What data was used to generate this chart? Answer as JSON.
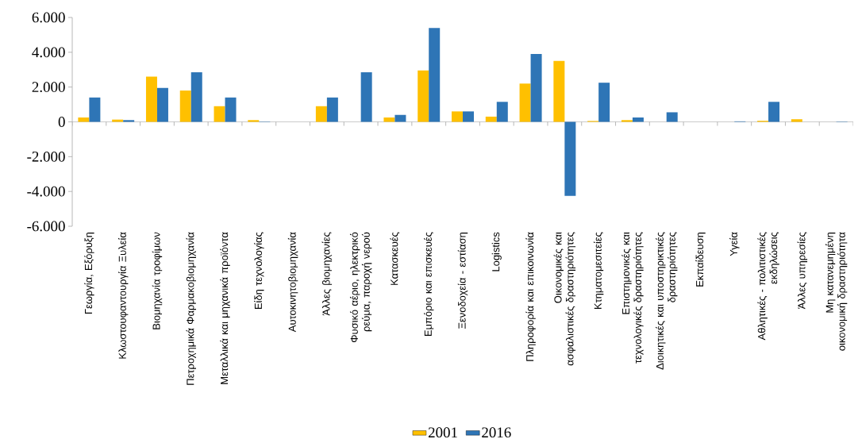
{
  "chart_data": {
    "type": "bar",
    "categories": [
      "Γεωργία, Εξόρυξη",
      "Κλωστουφαντουργία Ξυλεία",
      "Βιομηχανία τροφίμων",
      "Πετροχημικά Φαρμακοβιομηχανία",
      "Μεταλλικά και μηχανικά προϊόντα",
      "Είδη τεχνολογίας",
      "Αυτοκινητοβιομηχανία",
      "Άλλες βιομηχανίες",
      "Φυσικό αέριο, ηλεκτρικό ρεύμα, παροχή νερού",
      "Κατασκευές",
      "Εμπόριο και επισκευές",
      "Ξενοδοχεία - εστίαση",
      "Logistics",
      "Πληροφορία και επικοινωνία",
      "Οικονομικές και ασφαλιστικές δραστηριότητες",
      "Κτηματομεσιτείες",
      "Επιστημονικές και τεχνολογικές δραστηριότητες",
      "Διοικητικές και υποστηρικτικές δραστηριότητες",
      "Εκπαίδευση",
      "Υγεία",
      "Αθλητικές - πολιτιστικές εκδηλώσεις",
      "Άλλες υπηρεσίες",
      "Μη κατανεμημένη οικονομική δραστηριότητα"
    ],
    "series": [
      {
        "name": "2001",
        "color": "#ffc000",
        "values": [
          250,
          130,
          2600,
          1800,
          900,
          100,
          0,
          900,
          0,
          250,
          2950,
          600,
          300,
          2200,
          3500,
          50,
          100,
          0,
          0,
          0,
          60,
          150,
          0
        ]
      },
      {
        "name": "2016",
        "color": "#2e75b6",
        "values": [
          1400,
          100,
          1950,
          2850,
          1400,
          20,
          0,
          1400,
          2850,
          400,
          5400,
          600,
          1150,
          3900,
          -4250,
          2250,
          250,
          550,
          0,
          30,
          1150,
          0,
          20
        ]
      }
    ],
    "ylim": [
      -6000,
      6000
    ],
    "yticks": [
      {
        "value": -6000,
        "label": "-6.000"
      },
      {
        "value": -4000,
        "label": "-4.000"
      },
      {
        "value": -2000,
        "label": "-2.000"
      },
      0,
      {
        "value": 2000,
        "label": "2.000"
      },
      {
        "value": 4000,
        "label": "4.000"
      },
      {
        "value": 6000,
        "label": "6.000"
      }
    ],
    "legend": "bottom"
  }
}
